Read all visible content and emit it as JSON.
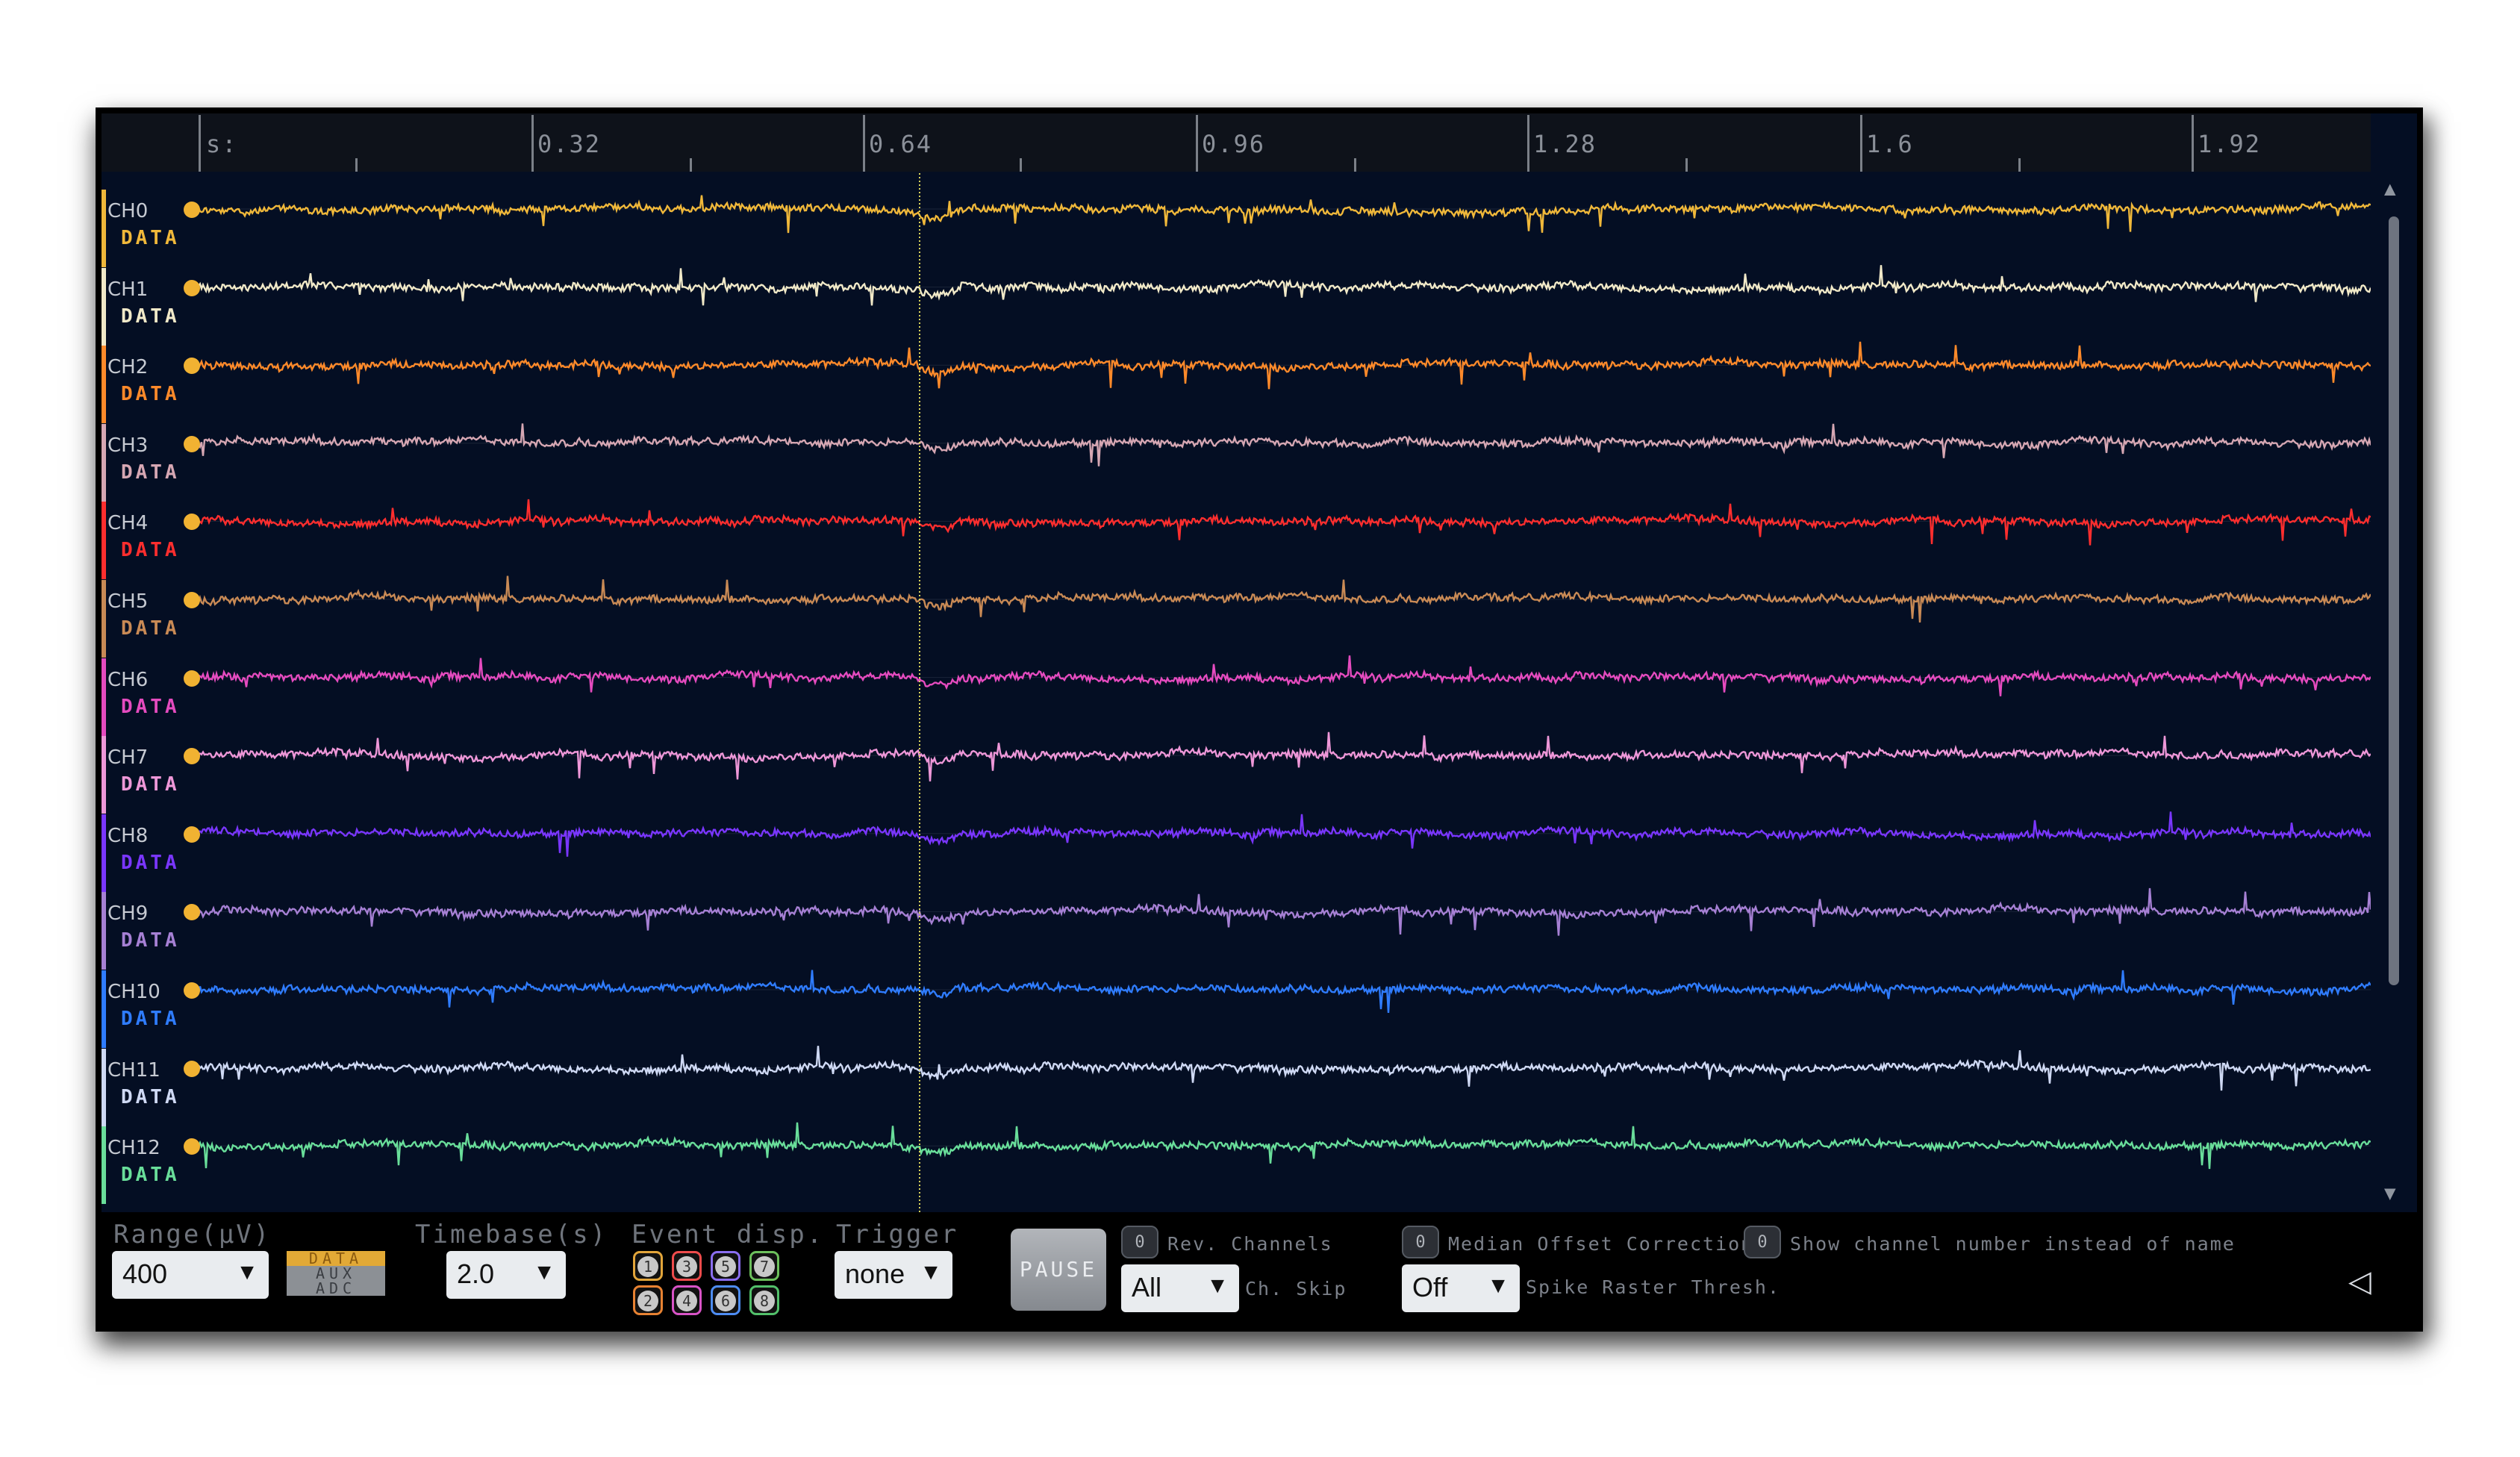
{
  "ruler": {
    "unit_label": "s:",
    "major_labels": [
      "0.32",
      "0.64",
      "0.96",
      "1.28",
      "1.6",
      "1.92"
    ]
  },
  "channels": [
    {
      "name": "CH0",
      "source": "DATA",
      "color": "#f0b83a"
    },
    {
      "name": "CH1",
      "source": "DATA",
      "color": "#f1e9c8"
    },
    {
      "name": "CH2",
      "source": "DATA",
      "color": "#ff8a2a"
    },
    {
      "name": "CH3",
      "source": "DATA",
      "color": "#d6a7b3"
    },
    {
      "name": "CH4",
      "source": "DATA",
      "color": "#ff2e2e"
    },
    {
      "name": "CH5",
      "source": "DATA",
      "color": "#c98a55"
    },
    {
      "name": "CH6",
      "source": "DATA",
      "color": "#e54bbf"
    },
    {
      "name": "CH7",
      "source": "DATA",
      "color": "#ee97d8"
    },
    {
      "name": "CH8",
      "source": "DATA",
      "color": "#7a36ff"
    },
    {
      "name": "CH9",
      "source": "DATA",
      "color": "#a680d4"
    },
    {
      "name": "CH10",
      "source": "DATA",
      "color": "#2f7cff"
    },
    {
      "name": "CH11",
      "source": "DATA",
      "color": "#cfd9f4"
    },
    {
      "name": "CH12",
      "source": "DATA",
      "color": "#69de9a"
    }
  ],
  "controls": {
    "range_label": "Range(μV)",
    "range_value": "400",
    "source_modes": [
      "DATA",
      "AUX",
      "ADC"
    ],
    "timebase_label": "Timebase(s)",
    "timebase_value": "2.0",
    "event_label": "Event disp.",
    "events_top": [
      {
        "n": "1",
        "color": "#e2a53a"
      },
      {
        "n": "3",
        "color": "#ee4b4b"
      },
      {
        "n": "5",
        "color": "#8a6ef0"
      },
      {
        "n": "7",
        "color": "#6cc05c"
      }
    ],
    "events_bottom": [
      {
        "n": "2",
        "color": "#e78232"
      },
      {
        "n": "4",
        "color": "#d853c6"
      },
      {
        "n": "6",
        "color": "#4d8cf2"
      },
      {
        "n": "8",
        "color": "#52c06a"
      }
    ],
    "trigger_label": "Trigger",
    "trigger_value": "none",
    "pause_label": "PAUSE",
    "rev_channels_toggle": "0",
    "rev_channels_label": "Rev. Channels",
    "ch_skip_value": "All",
    "ch_skip_label": "Ch. Skip",
    "median_offset_toggle": "0",
    "median_offset_label": "Median Offset Correction",
    "spike_raster_value": "Off",
    "spike_raster_label": "Spike Raster Thresh.",
    "show_number_toggle": "0",
    "show_number_label": "Show channel number instead of name",
    "collapse_icon": "◁"
  }
}
